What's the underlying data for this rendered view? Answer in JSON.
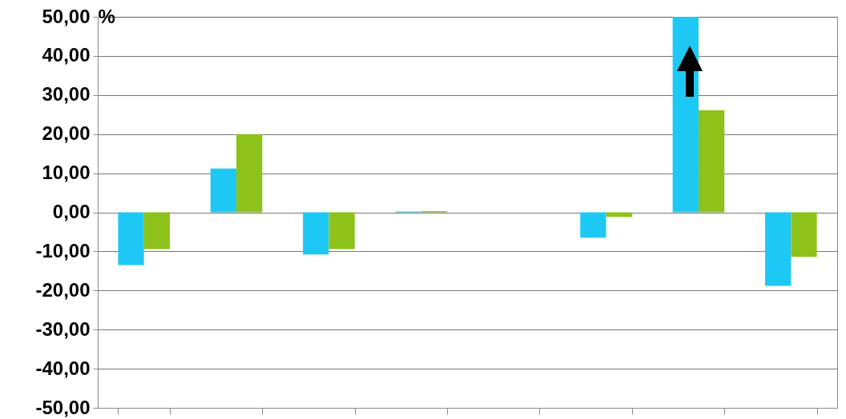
{
  "chart_data": {
    "type": "bar",
    "ylabel": "%",
    "categories": [
      null,
      null,
      null,
      null,
      null,
      null,
      null,
      null
    ],
    "series": [
      {
        "color": "#1ec8f5",
        "values": [
          -13.5,
          11.2,
          -10.8,
          0.2,
          null,
          -6.5,
          50,
          -18.8
        ]
      },
      {
        "color": "#8cc21a",
        "values": [
          -9.4,
          20,
          -9.4,
          0.3,
          null,
          -1.2,
          26.1,
          -11.4
        ]
      }
    ],
    "ylim": [
      -50,
      50
    ],
    "yticks": [
      {
        "value": -50,
        "label": "-50,00"
      },
      {
        "value": -40,
        "label": "-40,00"
      },
      {
        "value": -30,
        "label": "-30,00"
      },
      {
        "value": -20,
        "label": "-20,00"
      },
      {
        "value": -10,
        "label": "-10,00"
      },
      {
        "value": 0,
        "label": "0,00"
      },
      {
        "value": 10,
        "label": "10,00"
      },
      {
        "value": 20,
        "label": "20,00"
      },
      {
        "value": 30,
        "label": "30,00"
      },
      {
        "value": 40,
        "label": "40,00"
      },
      {
        "value": 50,
        "label": "50,00"
      }
    ],
    "grid": "y",
    "tick_labels": "y",
    "legend": false
  }
}
